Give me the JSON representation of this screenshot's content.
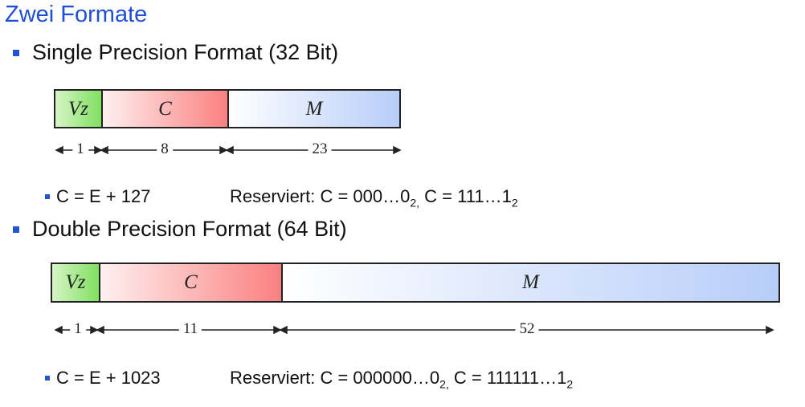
{
  "title": "Zwei Formate",
  "single": {
    "heading": "Single Precision Format (32 Bit)",
    "fields": {
      "vz": "Vz",
      "c": "C",
      "m": "M"
    },
    "widths": {
      "vz": "1",
      "c": "8",
      "m": "23"
    },
    "formula": "C = E + 127",
    "reserved_prefix": "Reserviert: C = 000…0",
    "reserved_sub1": "2,",
    "reserved_mid": " C = 111…1",
    "reserved_sub2": "2"
  },
  "double": {
    "heading": "Double Precision Format (64 Bit)",
    "fields": {
      "vz": "Vz",
      "c": "C",
      "m": "M"
    },
    "widths": {
      "vz": "1",
      "c": "11",
      "m": "52"
    },
    "formula": "C = E + 1023",
    "reserved_prefix": "Reserviert: C = 000000…0",
    "reserved_sub1": "2,",
    "reserved_mid": " C = 111111…1",
    "reserved_sub2": "2"
  },
  "colors": {
    "title": "#1f4ed8",
    "bullet": "#2255d6",
    "vz_field": "#7fe060",
    "c_field": "#fb8080",
    "m_field": "#b7cdf9"
  }
}
